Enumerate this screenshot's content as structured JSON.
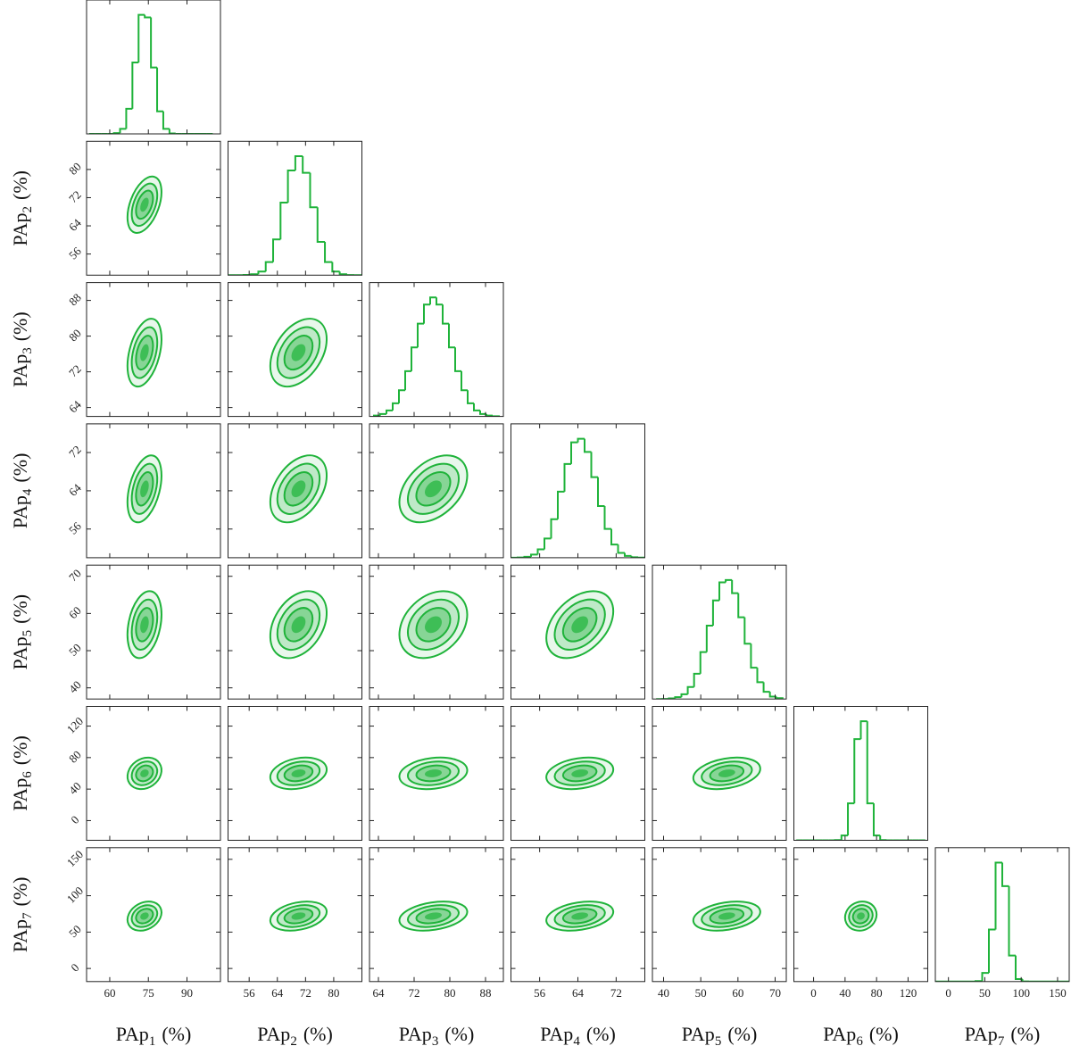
{
  "chart_data": {
    "type": "corner",
    "color": "#1fb33a",
    "variables": [
      {
        "label": "PAp",
        "subscript": "1",
        "unit": "(%)",
        "lim": [
          51,
          103
        ],
        "ticks": [
          60,
          75,
          90
        ],
        "mean": 73.5,
        "sd": 3.3,
        "corr": [],
        "hist": {
          "bins": [
            52,
            54.4,
            56.8,
            59.2,
            61.6,
            64,
            66.4,
            68.8,
            71.2,
            73.6,
            76,
            78.4,
            80.8,
            83.2,
            85.6,
            88,
            90.4,
            92.8,
            95.2,
            97.6,
            100
          ],
          "counts": [
            0,
            0,
            0,
            0,
            0.6,
            4,
            20,
            57,
            95,
            93,
            53,
            18,
            4,
            0.4,
            0,
            0,
            0,
            0,
            0,
            0
          ]
        }
      },
      {
        "label": "PAp",
        "subscript": "2",
        "unit": "(%)",
        "lim": [
          50,
          88
        ],
        "ticks": [
          56,
          64,
          72,
          80
        ],
        "mean": 70,
        "sd": 4,
        "corr": [
          0.45
        ],
        "hist": {
          "bins": [
            46,
            48.1,
            50.2,
            52.3,
            54.4,
            56.5,
            58.6,
            60.7,
            62.8,
            64.9,
            67,
            69.1,
            71.2,
            73.3,
            75.4,
            77.5,
            79.6,
            81.7,
            83.8,
            85.9,
            88
          ],
          "counts": [
            0,
            0,
            0,
            0,
            0.2,
            0.8,
            3,
            11,
            30,
            61,
            88,
            100,
            86,
            57,
            28,
            11,
            3,
            0.8,
            0.1,
            0
          ]
        }
      },
      {
        "label": "PAp",
        "subscript": "3",
        "unit": "(%)",
        "lim": [
          62,
          92
        ],
        "ticks": [
          64,
          72,
          80,
          88
        ],
        "mean": 76.3,
        "sd": 3.8,
        "corr": [
          0.4,
          0.4
        ],
        "hist": {
          "bins": [
            63,
            64.4,
            65.8,
            67.2,
            68.6,
            70,
            71.4,
            72.8,
            74.2,
            75.6,
            77,
            78.4,
            79.8,
            81.2,
            82.6,
            84,
            85.4,
            86.8,
            88.2,
            89.6,
            91
          ],
          "counts": [
            0.7,
            2,
            5,
            11,
            22,
            38,
            58,
            78,
            94,
            100,
            94,
            78,
            58,
            38,
            22,
            11,
            5,
            2,
            0.7,
            0.2
          ]
        }
      },
      {
        "label": "PAp",
        "subscript": "4",
        "unit": "(%)",
        "lim": [
          50,
          78
        ],
        "ticks": [
          56,
          64,
          72
        ],
        "mean": 64.4,
        "sd": 3.5,
        "corr": [
          0.4,
          0.4,
          0.4
        ],
        "hist": {
          "bins": [
            50,
            51.4,
            52.8,
            54.2,
            55.6,
            57,
            58.4,
            59.8,
            61.2,
            62.6,
            64,
            65.4,
            66.8,
            68.2,
            69.6,
            71,
            72.4,
            73.8,
            75.2,
            76.6,
            78
          ],
          "counts": [
            0,
            0.2,
            0.8,
            2.6,
            7,
            16,
            32,
            55,
            78,
            96,
            99,
            88,
            67,
            43,
            24,
            11,
            4,
            1.5,
            0.4,
            0.1
          ]
        }
      },
      {
        "label": "PAp",
        "subscript": "5",
        "unit": "(%)",
        "lim": [
          37,
          73
        ],
        "ticks": [
          40,
          50,
          60,
          70
        ],
        "mean": 57,
        "sd": 4.5,
        "corr": [
          0.3,
          0.35,
          0.3,
          0.4
        ],
        "hist": {
          "bins": [
            38,
            39.7,
            41.4,
            43.1,
            44.8,
            46.5,
            48.2,
            49.9,
            51.6,
            53.3,
            55,
            56.7,
            58.4,
            60.1,
            61.8,
            63.5,
            65.2,
            66.9,
            68.6,
            70.3,
            72
          ],
          "counts": [
            0,
            0.1,
            0.5,
            1.5,
            4,
            10,
            21,
            39,
            61,
            82,
            97,
            99,
            88,
            68,
            46,
            26,
            14,
            6,
            2,
            0.7
          ]
        }
      },
      {
        "label": "PAp",
        "subscript": "6",
        "unit": "(%)",
        "lim": [
          -25,
          145
        ],
        "ticks": [
          0,
          40,
          80,
          120
        ],
        "mean": 60,
        "sd": 10,
        "corr": [
          0.2,
          0.25,
          0.2,
          0.25,
          0.3
        ],
        "hist": {
          "bins": [
            -22,
            -13.8,
            -5.6,
            2.6,
            10.8,
            19,
            27.2,
            35.4,
            43.6,
            51.8,
            60,
            68.2,
            76.4,
            84.6,
            92.8,
            101,
            109.2,
            117.4,
            125.6,
            133.8,
            142
          ],
          "counts": [
            0,
            0,
            0,
            0,
            0,
            0,
            0.2,
            4,
            31,
            85,
            100,
            31,
            4,
            0.2,
            0,
            0,
            0,
            0,
            0,
            0
          ]
        }
      },
      {
        "label": "PAp",
        "subscript": "7",
        "unit": "(%)",
        "lim": [
          -18,
          166
        ],
        "ticks": [
          0,
          50,
          100,
          150
        ],
        "mean": 72,
        "sd": 10,
        "corr": [
          0.25,
          0.3,
          0.3,
          0.3,
          0.3,
          0.1
        ],
        "hist": {
          "bins": [
            -18,
            -8.8,
            0.4,
            9.6,
            18.8,
            28,
            37.2,
            46.4,
            55.6,
            64.8,
            74,
            83.2,
            92.4,
            101.6,
            110.8,
            120,
            129.2,
            138.4,
            147.6,
            156.8,
            166
          ],
          "counts": [
            0,
            0,
            0,
            0,
            0,
            0,
            0.4,
            7,
            42,
            96,
            77,
            21,
            2,
            0.1,
            0,
            0,
            0,
            0,
            0,
            0
          ]
        }
      }
    ]
  }
}
